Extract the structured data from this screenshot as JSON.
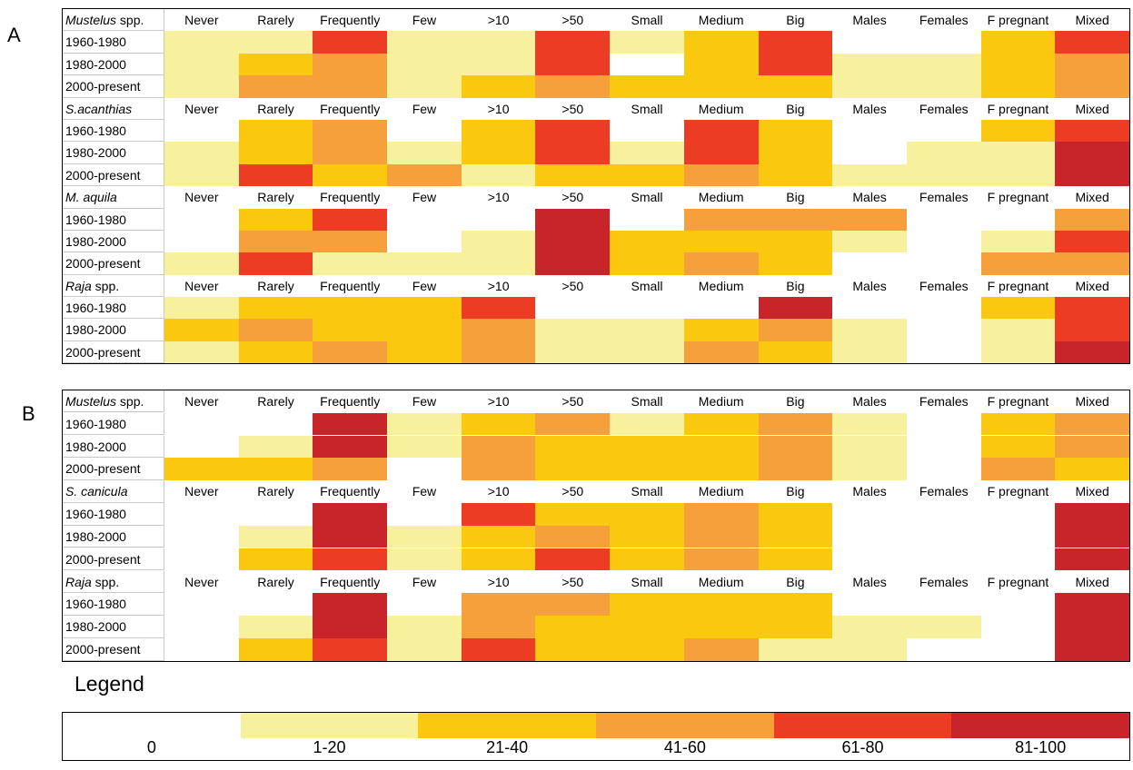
{
  "legend": {
    "title": "Legend",
    "bins": [
      {
        "label": "0",
        "color": "#FFFFFF"
      },
      {
        "label": "1-20",
        "color": "#F7F09C"
      },
      {
        "label": "21-40",
        "color": "#FAC80F"
      },
      {
        "label": "41-60",
        "color": "#F6A03C"
      },
      {
        "label": "61-80",
        "color": "#EC3C24"
      },
      {
        "label": "81-100",
        "color": "#C8252B"
      }
    ]
  },
  "chart_data": [
    {
      "type": "heatmap",
      "panel": "A",
      "columns": [
        "Never",
        "Rarely",
        "Frequently",
        "Few",
        ">10",
        ">50",
        "Small",
        "Medium",
        "Big",
        "Males",
        "Females",
        "F pregnant",
        "Mixed"
      ],
      "value_scale": "legend bin index: 0=0, 1=1-20, 2=21-40, 3=41-60, 4=61-80, 5=81-100",
      "blocks": [
        {
          "species_italic": "Mustelus",
          "species_suffix": " spp.",
          "rows": [
            {
              "period": "1960-1980",
              "values": [
                1,
                1,
                4,
                1,
                1,
                4,
                1,
                2,
                4,
                0,
                0,
                2,
                4
              ]
            },
            {
              "period": "1980-2000",
              "values": [
                1,
                2,
                3,
                1,
                1,
                4,
                0,
                2,
                4,
                1,
                1,
                2,
                3
              ]
            },
            {
              "period": "2000-present",
              "values": [
                1,
                3,
                3,
                1,
                2,
                3,
                2,
                2,
                2,
                1,
                1,
                2,
                3
              ]
            }
          ]
        },
        {
          "species_italic": "S.acanthias",
          "species_suffix": "",
          "rows": [
            {
              "period": "1960-1980",
              "values": [
                0,
                2,
                3,
                0,
                2,
                4,
                0,
                4,
                2,
                0,
                0,
                2,
                4
              ]
            },
            {
              "period": "1980-2000",
              "values": [
                1,
                2,
                3,
                1,
                2,
                4,
                1,
                4,
                2,
                0,
                1,
                1,
                5
              ]
            },
            {
              "period": "2000-present",
              "values": [
                1,
                4,
                2,
                3,
                1,
                2,
                2,
                3,
                2,
                1,
                1,
                1,
                5
              ]
            }
          ]
        },
        {
          "species_italic": "M. aquila",
          "species_suffix": "",
          "rows": [
            {
              "period": "1960-1980",
              "values": [
                0,
                2,
                4,
                0,
                0,
                5,
                0,
                3,
                3,
                3,
                0,
                0,
                3
              ]
            },
            {
              "period": "1980-2000",
              "values": [
                0,
                3,
                3,
                0,
                1,
                5,
                2,
                2,
                2,
                1,
                0,
                1,
                4
              ]
            },
            {
              "period": "2000-present",
              "values": [
                1,
                4,
                1,
                1,
                1,
                5,
                2,
                3,
                2,
                0,
                0,
                3,
                3
              ]
            }
          ]
        },
        {
          "species_italic": "Raja",
          "species_suffix": " spp.",
          "rows": [
            {
              "period": "1960-1980",
              "values": [
                1,
                2,
                2,
                2,
                4,
                0,
                0,
                0,
                5,
                0,
                0,
                2,
                4
              ]
            },
            {
              "period": "1980-2000",
              "values": [
                2,
                3,
                2,
                2,
                3,
                1,
                1,
                2,
                3,
                1,
                0,
                1,
                4
              ]
            },
            {
              "period": "2000-present",
              "values": [
                1,
                2,
                3,
                2,
                3,
                1,
                1,
                3,
                2,
                1,
                0,
                1,
                5
              ]
            }
          ]
        }
      ]
    },
    {
      "type": "heatmap",
      "panel": "B",
      "columns": [
        "Never",
        "Rarely",
        "Frequently",
        "Few",
        ">10",
        ">50",
        "Small",
        "Medium",
        "Big",
        "Males",
        "Females",
        "F pregnant",
        "Mixed"
      ],
      "value_scale": "legend bin index: 0=0, 1=1-20, 2=21-40, 3=41-60, 4=61-80, 5=81-100",
      "blocks": [
        {
          "species_italic": "Mustelus",
          "species_suffix": " spp.",
          "rows": [
            {
              "period": "1960-1980",
              "values": [
                0,
                0,
                5,
                1,
                2,
                3,
                1,
                2,
                3,
                1,
                0,
                2,
                3
              ]
            },
            {
              "period": "1980-2000",
              "values": [
                0,
                1,
                5,
                1,
                3,
                2,
                2,
                2,
                3,
                1,
                0,
                2,
                3
              ]
            },
            {
              "period": "2000-present",
              "values": [
                2,
                2,
                3,
                0,
                3,
                2,
                2,
                2,
                3,
                1,
                0,
                3,
                2
              ]
            }
          ]
        },
        {
          "species_italic": "S. canicula",
          "species_suffix": "",
          "rows": [
            {
              "period": "1960-1980",
              "values": [
                0,
                0,
                5,
                0,
                4,
                2,
                2,
                3,
                2,
                0,
                0,
                0,
                5
              ]
            },
            {
              "period": "1980-2000",
              "values": [
                0,
                1,
                5,
                1,
                2,
                3,
                2,
                3,
                2,
                0,
                0,
                0,
                5
              ]
            },
            {
              "period": "2000-present",
              "values": [
                0,
                2,
                4,
                1,
                2,
                4,
                2,
                3,
                2,
                0,
                0,
                0,
                5
              ]
            }
          ]
        },
        {
          "species_italic": "Raja",
          "species_suffix": " spp.",
          "rows": [
            {
              "period": "1960-1980",
              "values": [
                0,
                0,
                5,
                0,
                3,
                3,
                2,
                2,
                2,
                0,
                0,
                0,
                5
              ]
            },
            {
              "period": "1980-2000",
              "values": [
                0,
                1,
                5,
                1,
                3,
                2,
                2,
                2,
                2,
                1,
                1,
                0,
                5
              ]
            },
            {
              "period": "2000-present",
              "values": [
                0,
                2,
                4,
                1,
                4,
                2,
                2,
                3,
                1,
                1,
                0,
                0,
                5
              ]
            }
          ]
        }
      ]
    }
  ]
}
